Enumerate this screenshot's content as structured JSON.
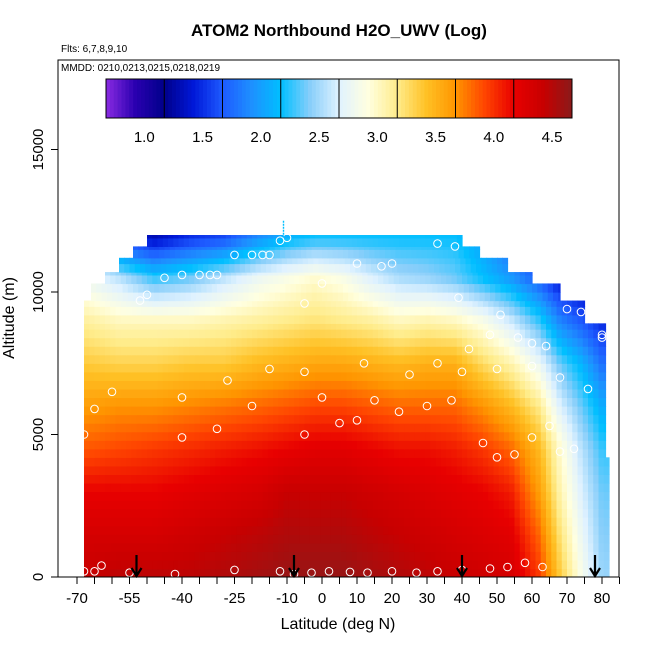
{
  "chart_data": {
    "type": "heatmap",
    "title": "ATOM2 Northbound H2O_UWV (Log)",
    "flights_label": "Flts: 6,7,8,9,10",
    "dates_label": "MMDD: 0210,0213,0215,0218,0219",
    "xlabel": "Latitude (deg N)",
    "ylabel": "Altitude (m)",
    "xlim": [
      -70,
      85
    ],
    "ylim": [
      0,
      17500
    ],
    "x_ticks": [
      -70,
      -55,
      -40,
      -25,
      -10,
      0,
      10,
      20,
      30,
      40,
      50,
      60,
      70,
      80
    ],
    "x_tick_labels": [
      "-70",
      "-55",
      "-40",
      "-25",
      "-10",
      "0",
      "10",
      "20",
      "30",
      "40",
      "50",
      "60",
      "70",
      "80"
    ],
    "x_minor_ticks": [
      -65,
      -60,
      -50,
      -45,
      -35,
      -30,
      -20,
      -15,
      -5,
      5,
      15,
      25,
      35,
      45,
      55,
      65,
      75,
      85
    ],
    "y_ticks": [
      0,
      5000,
      10000,
      15000
    ],
    "y_tick_labels": [
      "0",
      "5000",
      "10000",
      "15000"
    ],
    "colorbar": {
      "range": [
        0.5,
        4.5
      ],
      "ticks": [
        1.0,
        1.5,
        2.0,
        2.5,
        3.0,
        3.5,
        4.0,
        4.5
      ],
      "tick_labels": [
        "1.0",
        "1.5",
        "2.0",
        "2.5",
        "3.0",
        "3.5",
        "4.0",
        "4.5"
      ]
    },
    "colormap": [
      {
        "v": 0.5,
        "c": "#8a2be2"
      },
      {
        "v": 0.75,
        "c": "#2a00b0"
      },
      {
        "v": 1.0,
        "c": "#00008b"
      },
      {
        "v": 1.25,
        "c": "#0018d8"
      },
      {
        "v": 1.5,
        "c": "#1e5aff"
      },
      {
        "v": 1.75,
        "c": "#1e90ff"
      },
      {
        "v": 2.0,
        "c": "#00bfff"
      },
      {
        "v": 2.25,
        "c": "#87cefa"
      },
      {
        "v": 2.5,
        "c": "#e0f2ff"
      },
      {
        "v": 2.75,
        "c": "#ffffe0"
      },
      {
        "v": 3.0,
        "c": "#ffec8b"
      },
      {
        "v": 3.25,
        "c": "#ffc125"
      },
      {
        "v": 3.5,
        "c": "#ff9500"
      },
      {
        "v": 3.75,
        "c": "#ff4500"
      },
      {
        "v": 4.0,
        "c": "#e80000"
      },
      {
        "v": 4.25,
        "c": "#c80000"
      },
      {
        "v": 4.5,
        "c": "#8b1a1a"
      }
    ],
    "field_lats": [
      -68,
      -58,
      -48,
      -38,
      -28,
      -18,
      -10,
      -2,
      6,
      14,
      22,
      30,
      38,
      46,
      54,
      62,
      68,
      74,
      80
    ],
    "field_alts": [
      0,
      1500,
      3000,
      4500,
      6000,
      7500,
      9000,
      10500,
      12000
    ],
    "field_values": [
      [
        4.25,
        4.15,
        4.0,
        3.7,
        3.45,
        3.2,
        2.95,
        2.6,
        2.0
      ],
      [
        4.3,
        4.15,
        4.0,
        3.75,
        3.5,
        3.15,
        2.85,
        2.4,
        1.3
      ],
      [
        4.3,
        4.15,
        4.0,
        3.8,
        3.5,
        3.15,
        2.85,
        2.1,
        1.1
      ],
      [
        4.3,
        4.2,
        4.05,
        3.85,
        3.55,
        3.2,
        2.85,
        2.2,
        1.3
      ],
      [
        4.35,
        4.25,
        4.1,
        3.9,
        3.6,
        3.2,
        2.9,
        2.4,
        1.4
      ],
      [
        4.4,
        4.3,
        4.15,
        3.95,
        3.65,
        3.3,
        2.95,
        2.6,
        1.7
      ],
      [
        4.45,
        4.35,
        4.25,
        4.0,
        3.7,
        3.35,
        3.0,
        2.7,
        1.9
      ],
      [
        4.45,
        4.35,
        4.25,
        4.05,
        3.75,
        3.4,
        3.05,
        2.8,
        2.0
      ],
      [
        4.45,
        4.35,
        4.25,
        4.05,
        3.75,
        3.4,
        3.0,
        2.7,
        2.0
      ],
      [
        4.4,
        4.3,
        4.2,
        4.0,
        3.7,
        3.35,
        2.95,
        2.5,
        2.0
      ],
      [
        4.35,
        4.25,
        4.15,
        3.95,
        3.65,
        3.3,
        2.85,
        2.35,
        2.0
      ],
      [
        4.3,
        4.2,
        4.1,
        3.95,
        3.65,
        3.35,
        2.9,
        2.3,
        2.0
      ],
      [
        4.25,
        4.15,
        4.05,
        3.9,
        3.65,
        3.35,
        2.85,
        2.2,
        2.0
      ],
      [
        4.2,
        4.1,
        4.0,
        3.8,
        3.5,
        3.1,
        2.7,
        2.0,
        1.8
      ],
      [
        4.15,
        4.05,
        3.9,
        3.65,
        3.3,
        2.9,
        2.45,
        1.8,
        1.5
      ],
      [
        3.8,
        3.65,
        3.45,
        3.3,
        3.0,
        2.6,
        2.1,
        1.5,
        1.2
      ],
      [
        3.2,
        3.05,
        2.9,
        2.8,
        2.5,
        2.2,
        1.7,
        1.2,
        1.0
      ],
      [
        2.7,
        2.6,
        2.5,
        2.4,
        2.2,
        1.95,
        1.5,
        1.1,
        1.0
      ],
      [
        2.3,
        2.25,
        2.2,
        2.1,
        1.9,
        1.6,
        1.3,
        1.0,
        0.9
      ]
    ],
    "coverage": [
      {
        "lat_min": -68,
        "lat_max": 82,
        "alt_max": 4200
      },
      {
        "lat_min": -68,
        "lat_max": 81,
        "alt_max": 8900
      },
      {
        "lat_min": -68,
        "lat_max": 75,
        "alt_max": 9700
      },
      {
        "lat_min": -66,
        "lat_max": 68,
        "alt_max": 10300
      },
      {
        "lat_min": -62,
        "lat_max": 60,
        "alt_max": 10700
      },
      {
        "lat_min": -58,
        "lat_max": 53,
        "alt_max": 11200
      },
      {
        "lat_min": -54,
        "lat_max": 45,
        "alt_max": 11600
      },
      {
        "lat_min": -50,
        "lat_max": 40,
        "alt_max": 12000
      }
    ],
    "sample_points": [
      [
        -68,
        200
      ],
      [
        -65,
        200
      ],
      [
        -63,
        400
      ],
      [
        -55,
        150
      ],
      [
        -42,
        100
      ],
      [
        -25,
        250
      ],
      [
        -12,
        200
      ],
      [
        -8,
        100
      ],
      [
        -3,
        150
      ],
      [
        2,
        200
      ],
      [
        8,
        180
      ],
      [
        13,
        150
      ],
      [
        20,
        200
      ],
      [
        27,
        150
      ],
      [
        33,
        200
      ],
      [
        40,
        250
      ],
      [
        48,
        300
      ],
      [
        53,
        350
      ],
      [
        58,
        500
      ],
      [
        63,
        350
      ],
      [
        -40,
        4900
      ],
      [
        -30,
        5200
      ],
      [
        -20,
        6000
      ],
      [
        -5,
        5000
      ],
      [
        0,
        6300
      ],
      [
        5,
        5400
      ],
      [
        10,
        5500
      ],
      [
        15,
        6200
      ],
      [
        22,
        5800
      ],
      [
        30,
        6000
      ],
      [
        37,
        6200
      ],
      [
        46,
        4700
      ],
      [
        50,
        4200
      ],
      [
        55,
        4300
      ],
      [
        60,
        4900
      ],
      [
        65,
        5300
      ],
      [
        68,
        4400
      ],
      [
        72,
        4500
      ],
      [
        76,
        6600
      ],
      [
        80,
        8400
      ],
      [
        -68,
        5000
      ],
      [
        -65,
        5900
      ],
      [
        -60,
        6500
      ],
      [
        -40,
        6300
      ],
      [
        -27,
        6900
      ],
      [
        -15,
        7300
      ],
      [
        -5,
        7200
      ],
      [
        12,
        7500
      ],
      [
        25,
        7100
      ],
      [
        33,
        7500
      ],
      [
        40,
        7200
      ],
      [
        50,
        7300
      ],
      [
        60,
        7400
      ],
      [
        68,
        7000
      ],
      [
        -68,
        10000
      ],
      [
        -66,
        10600
      ],
      [
        -52,
        9700
      ],
      [
        -50,
        9900
      ],
      [
        -45,
        10500
      ],
      [
        -40,
        10600
      ],
      [
        -35,
        10600
      ],
      [
        -32,
        10600
      ],
      [
        -30,
        10600
      ],
      [
        -25,
        11300
      ],
      [
        -20,
        11300
      ],
      [
        -17,
        11300
      ],
      [
        -15,
        11300
      ],
      [
        0,
        10300
      ],
      [
        10,
        11000
      ],
      [
        17,
        10900
      ],
      [
        20,
        11000
      ],
      [
        -5,
        9600
      ],
      [
        39,
        9800
      ],
      [
        48,
        8500
      ],
      [
        51,
        9200
      ],
      [
        56,
        8400
      ],
      [
        60,
        8200
      ],
      [
        64,
        8100
      ],
      [
        70,
        9400
      ],
      [
        74,
        9300
      ],
      [
        80,
        8500
      ],
      [
        -58,
        11800
      ],
      [
        -56,
        11900
      ],
      [
        -12,
        11800
      ],
      [
        -10,
        11900
      ],
      [
        33,
        11700
      ],
      [
        38,
        11600
      ],
      [
        44,
        11800
      ],
      [
        -63,
        11300
      ],
      [
        42,
        8000
      ]
    ],
    "spike_marker": {
      "lat": -11,
      "alt_min": 11900,
      "alt_max": 12500
    },
    "arrows_lat": [
      -53,
      -8,
      40,
      78
    ]
  }
}
